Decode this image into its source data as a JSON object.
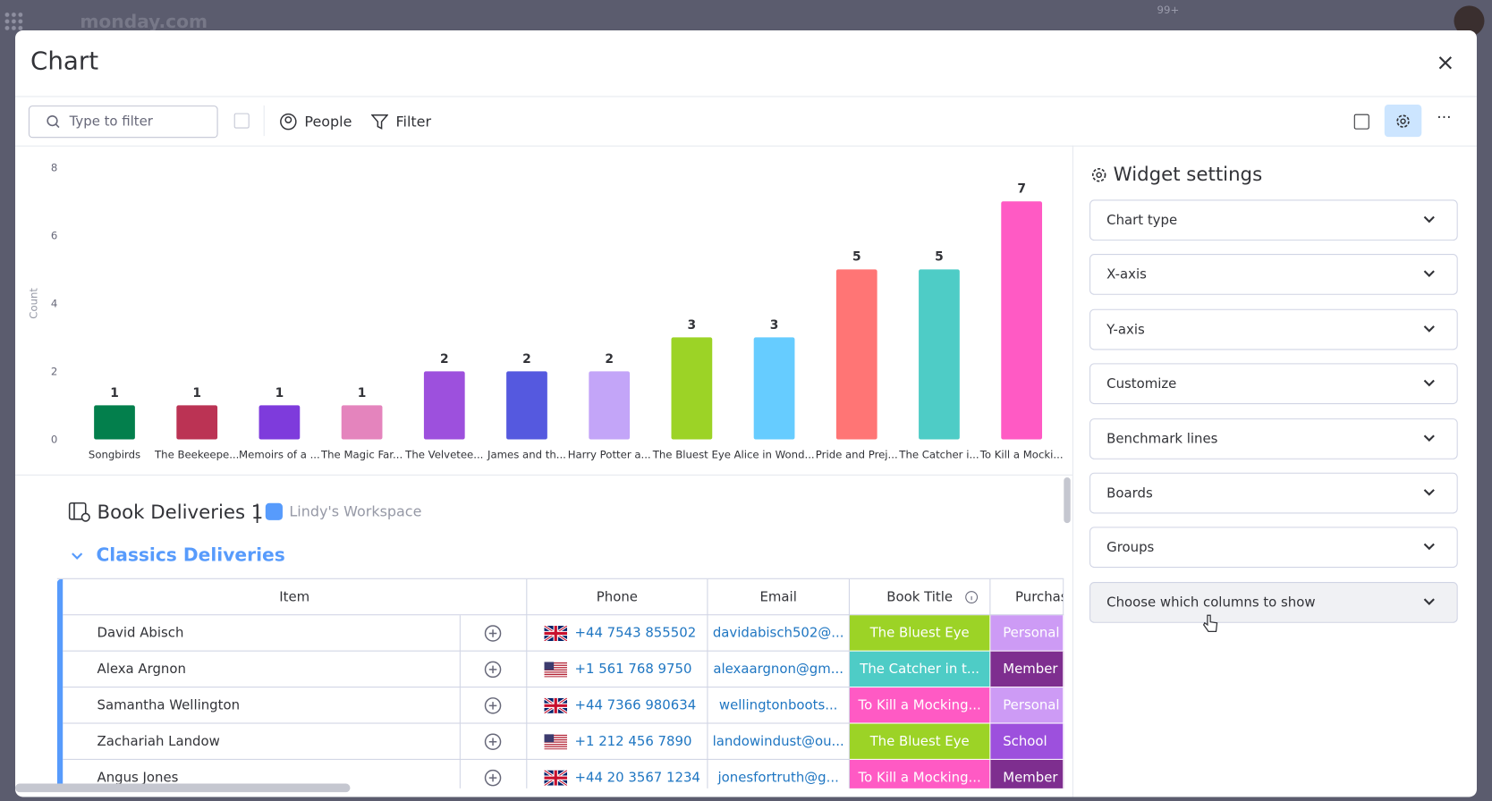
{
  "app": {
    "name": "monday.com",
    "badge": "99+"
  },
  "modal": {
    "title": "Chart"
  },
  "toolbar": {
    "search_placeholder": "Type to filter",
    "people": "People",
    "filter": "Filter"
  },
  "chart_data": {
    "type": "bar",
    "y_label": "Count",
    "categories": [
      "Songbirds",
      "The Beekeepe...",
      "Memoirs of a ...",
      "The Magic Far...",
      "The Velvetee...",
      "James and th...",
      "Harry Potter a...",
      "The Bluest Eye",
      "Alice in Wond...",
      "Pride and Prej...",
      "The Catcher i...",
      "To Kill a Mocki..."
    ],
    "values": [
      1,
      1,
      1,
      1,
      2,
      2,
      2,
      3,
      3,
      5,
      5,
      7
    ],
    "colors": [
      "#037f4c",
      "#bb3354",
      "#7e3bdc",
      "#e484bd",
      "#9d50dd",
      "#5559df",
      "#c3a5f8",
      "#9cd326",
      "#66ccff",
      "#ff7575",
      "#4eccc6",
      "#ff5ac4"
    ],
    "ylim": [
      0,
      8
    ],
    "yticks": [
      0,
      2,
      4,
      6,
      8
    ],
    "grid": false
  },
  "settings": {
    "title": "Widget settings",
    "items": [
      "Chart type",
      "X-axis",
      "Y-axis",
      "Customize",
      "Benchmark lines",
      "Boards",
      "Groups",
      "Choose which columns to show"
    ]
  },
  "board": {
    "name": "Book Deliveries 1",
    "separator": "|",
    "workspace": "Lindy's Workspace",
    "group": "Classics Deliveries",
    "columns": [
      "Item",
      "Phone",
      "Email",
      "Book Title",
      "Purchas"
    ],
    "rows": [
      {
        "name": "David Abisch",
        "flag": "uk",
        "phone": "+44 7543 855502",
        "email": "davidabisch502@...",
        "book": "The Bluest Eye",
        "book_color": "#9cd326",
        "purchase": "Personal",
        "purchase_color": "#cd9bf5"
      },
      {
        "name": "Alexa Argnon",
        "flag": "us",
        "phone": "+1 561 768 9750",
        "email": "alexaargnon@gm...",
        "book": "The Catcher in t...",
        "book_color": "#4eccc6",
        "purchase": "Member",
        "purchase_color": "#7e2e8f"
      },
      {
        "name": "Samantha Wellington",
        "flag": "uk",
        "phone": "+44 7366 980634",
        "email": "wellingtonboots...",
        "book": "To Kill a Mocking...",
        "book_color": "#ff5ac4",
        "purchase": "Personal",
        "purchase_color": "#cd9bf5"
      },
      {
        "name": "Zachariah Landow",
        "flag": "us",
        "phone": "+1 212 456 7890",
        "email": "landowindust@ou...",
        "book": "The Bluest Eye",
        "book_color": "#9cd326",
        "purchase": "School",
        "purchase_color": "#9d50dd"
      },
      {
        "name": "Angus Jones",
        "flag": "uk",
        "phone": "+44 20 3567 1234",
        "email": "jonesfortruth@g...",
        "book": "To Kill a Mocking...",
        "book_color": "#ff5ac4",
        "purchase": "Member",
        "purchase_color": "#7e2e8f"
      }
    ]
  }
}
